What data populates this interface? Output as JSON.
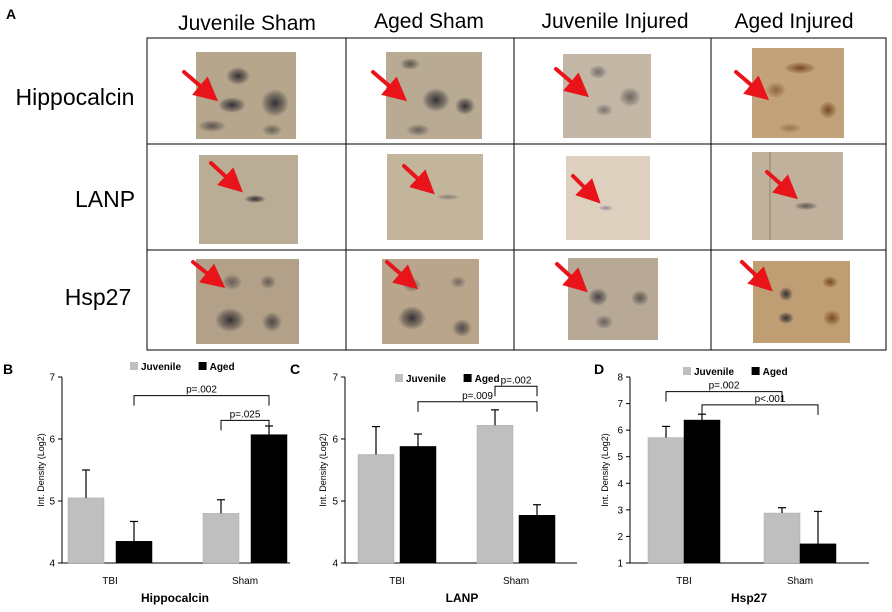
{
  "panel_a": {
    "label": "A",
    "columns": [
      "Juvenile Sham",
      "Aged Sham",
      "Juvenile Injured",
      "Aged Injured"
    ],
    "rows": [
      "Hippocalcin",
      "LANP",
      "Hsp27"
    ]
  },
  "chart_data": [
    {
      "panel": "B",
      "type": "bar",
      "title": "Hippocalcin",
      "xlabel": "",
      "ylabel": "Int. Density (Log2)",
      "categories": [
        "TBI",
        "Sham"
      ],
      "series": [
        {
          "name": "Juvenile",
          "color": "#bfbfbf",
          "values": [
            5.05,
            4.8
          ],
          "errors": [
            0.45,
            0.22
          ]
        },
        {
          "name": "Aged",
          "color": "#000000",
          "values": [
            4.35,
            6.07
          ],
          "errors": [
            0.32,
            0.14
          ]
        }
      ],
      "ylim": [
        4,
        7
      ],
      "yticks": [
        4,
        5,
        6,
        7
      ],
      "annotations": [
        {
          "text": "p=.002",
          "between": [
            [
              0,
              1
            ],
            [
              1,
              1
            ]
          ],
          "level": 6.7
        },
        {
          "text": "p=.025",
          "between": [
            [
              1,
              0
            ],
            [
              1,
              1
            ]
          ],
          "level": 6.3
        }
      ]
    },
    {
      "panel": "C",
      "type": "bar",
      "title": "LANP",
      "xlabel": "",
      "ylabel": "Int. Density (Log2)",
      "categories": [
        "TBI",
        "Sham"
      ],
      "series": [
        {
          "name": "Juvenile",
          "color": "#bfbfbf",
          "values": [
            5.75,
            6.22
          ],
          "errors": [
            0.45,
            0.25
          ]
        },
        {
          "name": "Aged",
          "color": "#000000",
          "values": [
            5.88,
            4.77
          ],
          "errors": [
            0.2,
            0.17
          ]
        }
      ],
      "ylim": [
        4,
        7
      ],
      "yticks": [
        4,
        5,
        6,
        7
      ],
      "annotations": [
        {
          "text": "p=.009",
          "between": [
            [
              0,
              1
            ],
            [
              1,
              1
            ]
          ],
          "level": 6.6
        },
        {
          "text": "p=.002",
          "between": [
            [
              1,
              0
            ],
            [
              1,
              1
            ]
          ],
          "level": 6.85
        }
      ]
    },
    {
      "panel": "D",
      "type": "bar",
      "title": "Hsp27",
      "xlabel": "",
      "ylabel": "Int. Density (Log2)",
      "categories": [
        "TBI",
        "Sham"
      ],
      "series": [
        {
          "name": "Juvenile",
          "color": "#bfbfbf",
          "values": [
            5.72,
            2.88
          ],
          "errors": [
            0.42,
            0.2
          ]
        },
        {
          "name": "Aged",
          "color": "#000000",
          "values": [
            6.38,
            1.72
          ],
          "errors": [
            0.22,
            1.22
          ]
        }
      ],
      "ylim": [
        1,
        8
      ],
      "yticks": [
        1,
        2,
        3,
        4,
        5,
        6,
        7,
        8
      ],
      "annotations": [
        {
          "text": "p=.002",
          "between": [
            [
              0,
              0
            ],
            [
              1,
              0
            ]
          ],
          "level": 7.45
        },
        {
          "text": "p<.001",
          "between": [
            [
              0,
              1
            ],
            [
              1,
              1
            ]
          ],
          "level": 6.95
        }
      ]
    }
  ]
}
